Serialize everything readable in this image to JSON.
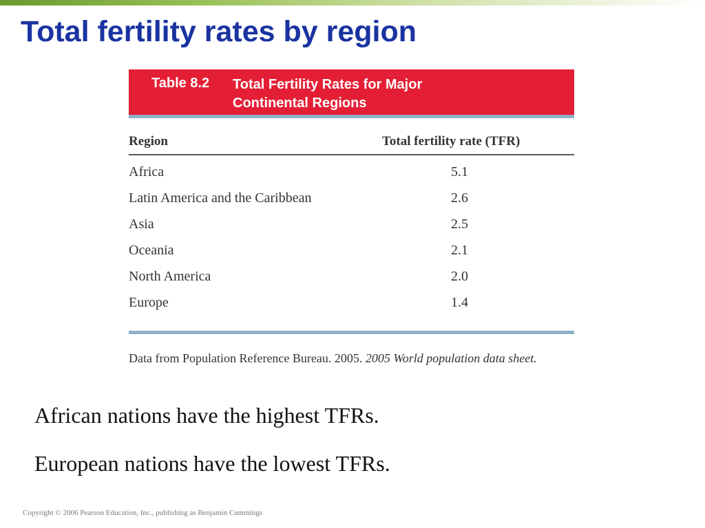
{
  "slide": {
    "title": "Total fertility rates by region"
  },
  "table": {
    "number": "Table 8.2",
    "caption_line1": "Total Fertility Rates for Major",
    "caption_line2": "Continental Regions",
    "columns": {
      "region": "Region",
      "tfr": "Total fertility rate (TFR)"
    },
    "rows": [
      {
        "region": "Africa",
        "tfr": "5.1"
      },
      {
        "region": "Latin America and the Caribbean",
        "tfr": "2.6"
      },
      {
        "region": "Asia",
        "tfr": "2.5"
      },
      {
        "region": "Oceania",
        "tfr": "2.1"
      },
      {
        "region": "North America",
        "tfr": "2.0"
      },
      {
        "region": "Europe",
        "tfr": "1.4"
      }
    ],
    "source_plain": "Data from Population Reference Bureau. 2005.",
    "source_italic": "2005 World population data sheet."
  },
  "bullets": [
    "African nations have the highest TFRs.",
    "European nations have the lowest TFRs."
  ],
  "footer": {
    "copyright": "Copyright © 2006 Pearson Education, Inc., publishing as Benjamin Cummings"
  },
  "colors": {
    "title": "#1a33a1",
    "table_header_band": "#e41f35",
    "table_rule": "#8fb0c9",
    "top_bar": "#6b9a2e"
  }
}
